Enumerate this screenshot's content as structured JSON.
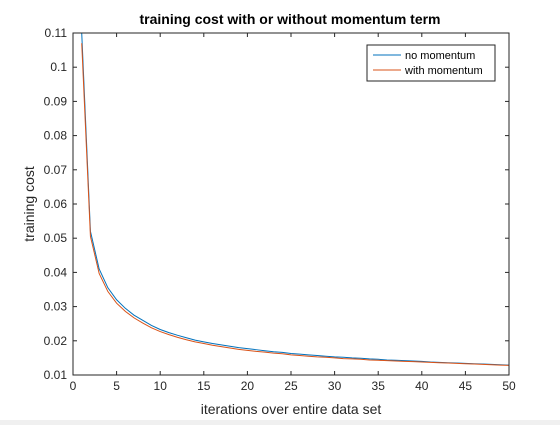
{
  "chart_data": {
    "type": "line",
    "title": "training cost with or without momentum term",
    "xlabel": "iterations over entire data set",
    "ylabel": "training cost",
    "xlim": [
      0,
      50
    ],
    "ylim": [
      0.01,
      0.11
    ],
    "xticks": [
      0,
      5,
      10,
      15,
      20,
      25,
      30,
      35,
      40,
      45,
      50
    ],
    "yticks": [
      0.01,
      0.02,
      0.03,
      0.04,
      0.05,
      0.06,
      0.07,
      0.08,
      0.09,
      0.1,
      0.11
    ],
    "xtick_labels": [
      "0",
      "5",
      "10",
      "15",
      "20",
      "25",
      "30",
      "35",
      "40",
      "45",
      "50"
    ],
    "ytick_labels": [
      "0.01",
      "0.02",
      "0.03",
      "0.04",
      "0.05",
      "0.06",
      "0.07",
      "0.08",
      "0.09",
      "0.1",
      "0.11"
    ],
    "grid": false,
    "legend_position": "top-right",
    "x": [
      1,
      2,
      3,
      4,
      5,
      6,
      7,
      8,
      9,
      10,
      11,
      12,
      13,
      14,
      15,
      16,
      17,
      18,
      19,
      20,
      21,
      22,
      23,
      24,
      25,
      26,
      27,
      28,
      29,
      30,
      31,
      32,
      33,
      34,
      35,
      36,
      37,
      38,
      39,
      40,
      41,
      42,
      43,
      44,
      45,
      46,
      47,
      48,
      49,
      50
    ],
    "series": [
      {
        "name": "no momentum",
        "color": "#0072BD",
        "values": [
          0.11,
          0.052,
          0.041,
          0.0355,
          0.032,
          0.0295,
          0.0275,
          0.026,
          0.0245,
          0.0233,
          0.0224,
          0.0216,
          0.0209,
          0.0202,
          0.0197,
          0.0192,
          0.0188,
          0.0184,
          0.018,
          0.0177,
          0.0174,
          0.0171,
          0.0168,
          0.0166,
          0.0163,
          0.0161,
          0.0159,
          0.0157,
          0.0155,
          0.0153,
          0.0152,
          0.015,
          0.0149,
          0.0147,
          0.0146,
          0.0144,
          0.0143,
          0.0142,
          0.0141,
          0.014,
          0.0138,
          0.0137,
          0.0136,
          0.0135,
          0.0134,
          0.0133,
          0.0132,
          0.0131,
          0.013,
          0.0129
        ]
      },
      {
        "name": "with momentum",
        "color": "#D95319",
        "values": [
          0.107,
          0.0505,
          0.0397,
          0.0344,
          0.031,
          0.0286,
          0.0267,
          0.0252,
          0.0238,
          0.0227,
          0.0218,
          0.021,
          0.0203,
          0.0197,
          0.0192,
          0.0187,
          0.0183,
          0.0179,
          0.0175,
          0.0172,
          0.0169,
          0.0167,
          0.0164,
          0.0162,
          0.0159,
          0.0157,
          0.0155,
          0.0153,
          0.0152,
          0.015,
          0.0148,
          0.0147,
          0.0146,
          0.0144,
          0.0143,
          0.0142,
          0.0141,
          0.014,
          0.0139,
          0.0138,
          0.0137,
          0.0136,
          0.0135,
          0.0134,
          0.0133,
          0.0132,
          0.0131,
          0.013,
          0.0129,
          0.0128
        ]
      }
    ]
  }
}
